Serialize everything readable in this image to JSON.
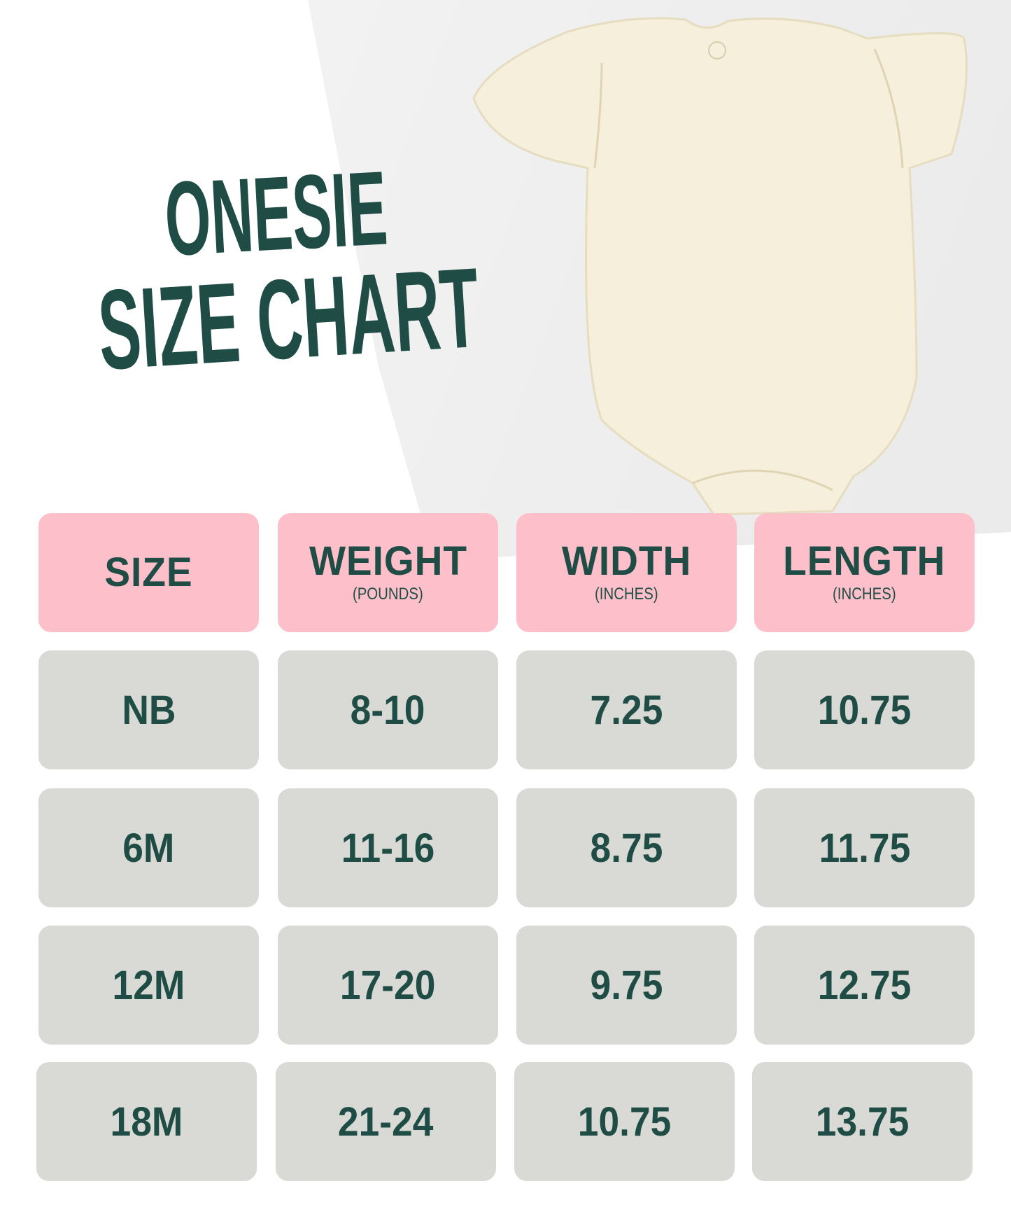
{
  "title": {
    "line1": "ONESIE",
    "line2": "SIZE CHART"
  },
  "colors": {
    "title": "#1f4d45",
    "header_bg": "#fdc0cb",
    "cell_bg": "#d9dad5",
    "onesie": "#f5efdc"
  },
  "image": {
    "icon": "baby-onesie-photo"
  },
  "table": {
    "headers": [
      {
        "label": "SIZE",
        "unit": ""
      },
      {
        "label": "WEIGHT",
        "unit": "(POUNDS)"
      },
      {
        "label": "WIDTH",
        "unit": "(INCHES)"
      },
      {
        "label": "LENGTH",
        "unit": "(INCHES)"
      }
    ],
    "rows": [
      [
        "NB",
        "8-10",
        "7.25",
        "10.75"
      ],
      [
        "6M",
        "11-16",
        "8.75",
        "11.75"
      ],
      [
        "12M",
        "17-20",
        "9.75",
        "12.75"
      ],
      [
        "18M",
        "21-24",
        "10.75",
        "13.75"
      ]
    ]
  }
}
